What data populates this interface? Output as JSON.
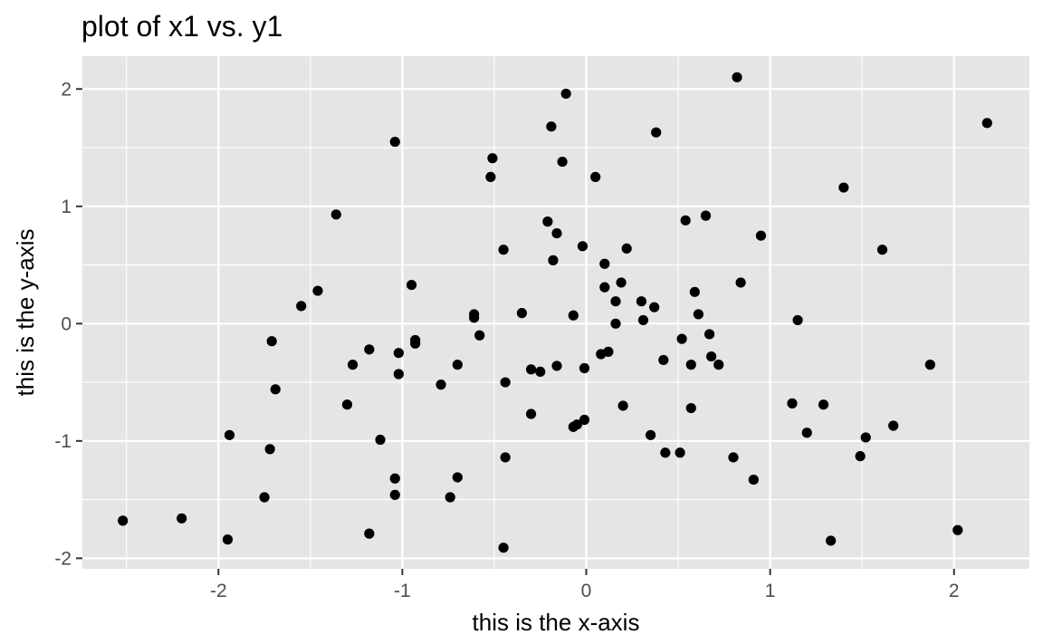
{
  "chart_data": {
    "type": "scatter",
    "title": "plot of x1 vs. y1",
    "xlabel": "this is the x-axis",
    "ylabel": "this is the y-axis",
    "xlim": [
      -2.74,
      2.41
    ],
    "ylim": [
      -2.09,
      2.28
    ],
    "xticks": [
      -2,
      -1,
      0,
      1,
      2
    ],
    "yticks": [
      -2,
      -1,
      0,
      1,
      2
    ],
    "xtick_labels": [
      "-2",
      "-1",
      "0",
      "1",
      "2"
    ],
    "ytick_labels": [
      "-2",
      "-1",
      "0",
      "1",
      "2"
    ],
    "grid": true,
    "panel_color": "#e5e5e5",
    "grid_color": "#ffffff",
    "point_color": "#000000",
    "series": [
      {
        "points": [
          [
            -2.52,
            -1.68
          ],
          [
            -2.2,
            -1.66
          ],
          [
            -1.95,
            -1.84
          ],
          [
            -1.94,
            -0.95
          ],
          [
            -1.75,
            -1.48
          ],
          [
            -1.72,
            -1.07
          ],
          [
            -1.71,
            -0.15
          ],
          [
            -1.69,
            -0.56
          ],
          [
            -1.55,
            0.15
          ],
          [
            -1.46,
            0.28
          ],
          [
            -1.36,
            0.93
          ],
          [
            -1.3,
            -0.69
          ],
          [
            -1.27,
            -0.35
          ],
          [
            -1.18,
            -0.22
          ],
          [
            -1.18,
            -1.79
          ],
          [
            -1.12,
            -0.99
          ],
          [
            -1.04,
            1.55
          ],
          [
            -1.04,
            -1.32
          ],
          [
            -1.04,
            -1.46
          ],
          [
            -1.02,
            -0.25
          ],
          [
            -1.02,
            -0.43
          ],
          [
            -0.95,
            0.33
          ],
          [
            -0.93,
            -0.14
          ],
          [
            -0.93,
            -0.17
          ],
          [
            -0.79,
            -0.52
          ],
          [
            -0.74,
            -1.48
          ],
          [
            -0.7,
            -1.31
          ],
          [
            -0.7,
            -0.35
          ],
          [
            -0.61,
            0.08
          ],
          [
            -0.61,
            0.05
          ],
          [
            -0.58,
            -0.1
          ],
          [
            -0.52,
            1.25
          ],
          [
            -0.51,
            1.41
          ],
          [
            -0.45,
            0.63
          ],
          [
            -0.44,
            -0.5
          ],
          [
            -0.44,
            -1.14
          ],
          [
            -0.45,
            -1.91
          ],
          [
            -0.35,
            0.09
          ],
          [
            -0.3,
            -0.39
          ],
          [
            -0.3,
            -0.77
          ],
          [
            -0.25,
            -0.41
          ],
          [
            -0.21,
            0.87
          ],
          [
            -0.19,
            1.68
          ],
          [
            -0.18,
            0.54
          ],
          [
            -0.16,
            0.77
          ],
          [
            -0.16,
            -0.36
          ],
          [
            -0.13,
            1.38
          ],
          [
            -0.11,
            1.96
          ],
          [
            -0.07,
            0.07
          ],
          [
            -0.07,
            -0.88
          ],
          [
            -0.05,
            -0.86
          ],
          [
            -0.02,
            0.66
          ],
          [
            -0.01,
            -0.82
          ],
          [
            -0.01,
            -0.38
          ],
          [
            0.05,
            1.25
          ],
          [
            0.08,
            -0.26
          ],
          [
            0.1,
            0.51
          ],
          [
            0.1,
            0.31
          ],
          [
            0.12,
            -0.24
          ],
          [
            0.16,
            0.19
          ],
          [
            0.16,
            0.0
          ],
          [
            0.19,
            0.35
          ],
          [
            0.2,
            -0.7
          ],
          [
            0.22,
            0.64
          ],
          [
            0.3,
            0.19
          ],
          [
            0.31,
            0.03
          ],
          [
            0.35,
            -0.95
          ],
          [
            0.37,
            0.14
          ],
          [
            0.38,
            1.63
          ],
          [
            0.42,
            -0.31
          ],
          [
            0.43,
            -1.1
          ],
          [
            0.51,
            -1.1
          ],
          [
            0.52,
            -0.13
          ],
          [
            0.54,
            0.88
          ],
          [
            0.57,
            -0.35
          ],
          [
            0.57,
            -0.72
          ],
          [
            0.59,
            0.27
          ],
          [
            0.61,
            0.08
          ],
          [
            0.65,
            0.92
          ],
          [
            0.67,
            -0.09
          ],
          [
            0.68,
            -0.28
          ],
          [
            0.72,
            -0.35
          ],
          [
            0.8,
            -1.14
          ],
          [
            0.82,
            2.1
          ],
          [
            0.84,
            0.35
          ],
          [
            0.91,
            -1.33
          ],
          [
            0.95,
            0.75
          ],
          [
            1.12,
            -0.68
          ],
          [
            1.15,
            0.03
          ],
          [
            1.2,
            -0.93
          ],
          [
            1.29,
            -0.69
          ],
          [
            1.33,
            -1.85
          ],
          [
            1.4,
            1.16
          ],
          [
            1.49,
            -1.13
          ],
          [
            1.52,
            -0.97
          ],
          [
            1.61,
            0.63
          ],
          [
            1.67,
            -0.87
          ],
          [
            1.87,
            -0.35
          ],
          [
            2.02,
            -1.76
          ],
          [
            2.18,
            1.71
          ]
        ]
      }
    ]
  }
}
